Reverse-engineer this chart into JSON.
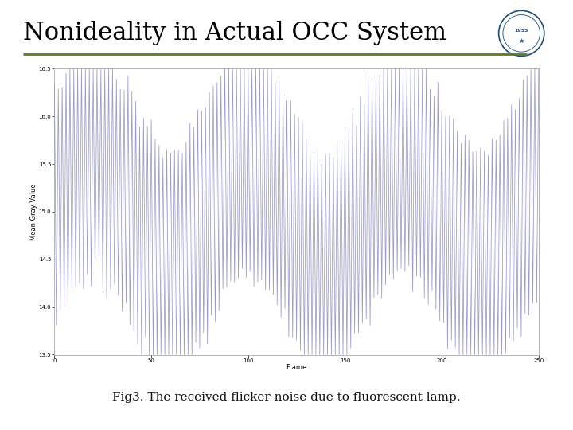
{
  "title": "Nonideality in Actual OCC System",
  "caption": "Fig3. The received flicker noise due to fluorescent lamp.",
  "xlabel": "Frame",
  "ylabel": "Mean Gray Value",
  "xlim": [
    0,
    250
  ],
  "ylim": [
    13.5,
    16.5
  ],
  "yticks": [
    13.5,
    14,
    14.5,
    15,
    15.5,
    16,
    16.5
  ],
  "xticks": [
    0,
    50,
    100,
    150,
    200,
    250
  ],
  "line_color": "#9999cc",
  "bg_color": "#ffffff",
  "title_color": "#000000",
  "accent_line_color": "#5a7a32",
  "bottom_bar_color": "#6a8c4a",
  "num_frames": 250,
  "base_mean": 15.0,
  "slow_amp": 0.55,
  "slow_freq_frames": 80,
  "fast_amp": 1.2,
  "noise_std": 0.08,
  "title_fontsize": 22,
  "caption_fontsize": 11,
  "tick_fontsize": 5,
  "label_fontsize": 6
}
